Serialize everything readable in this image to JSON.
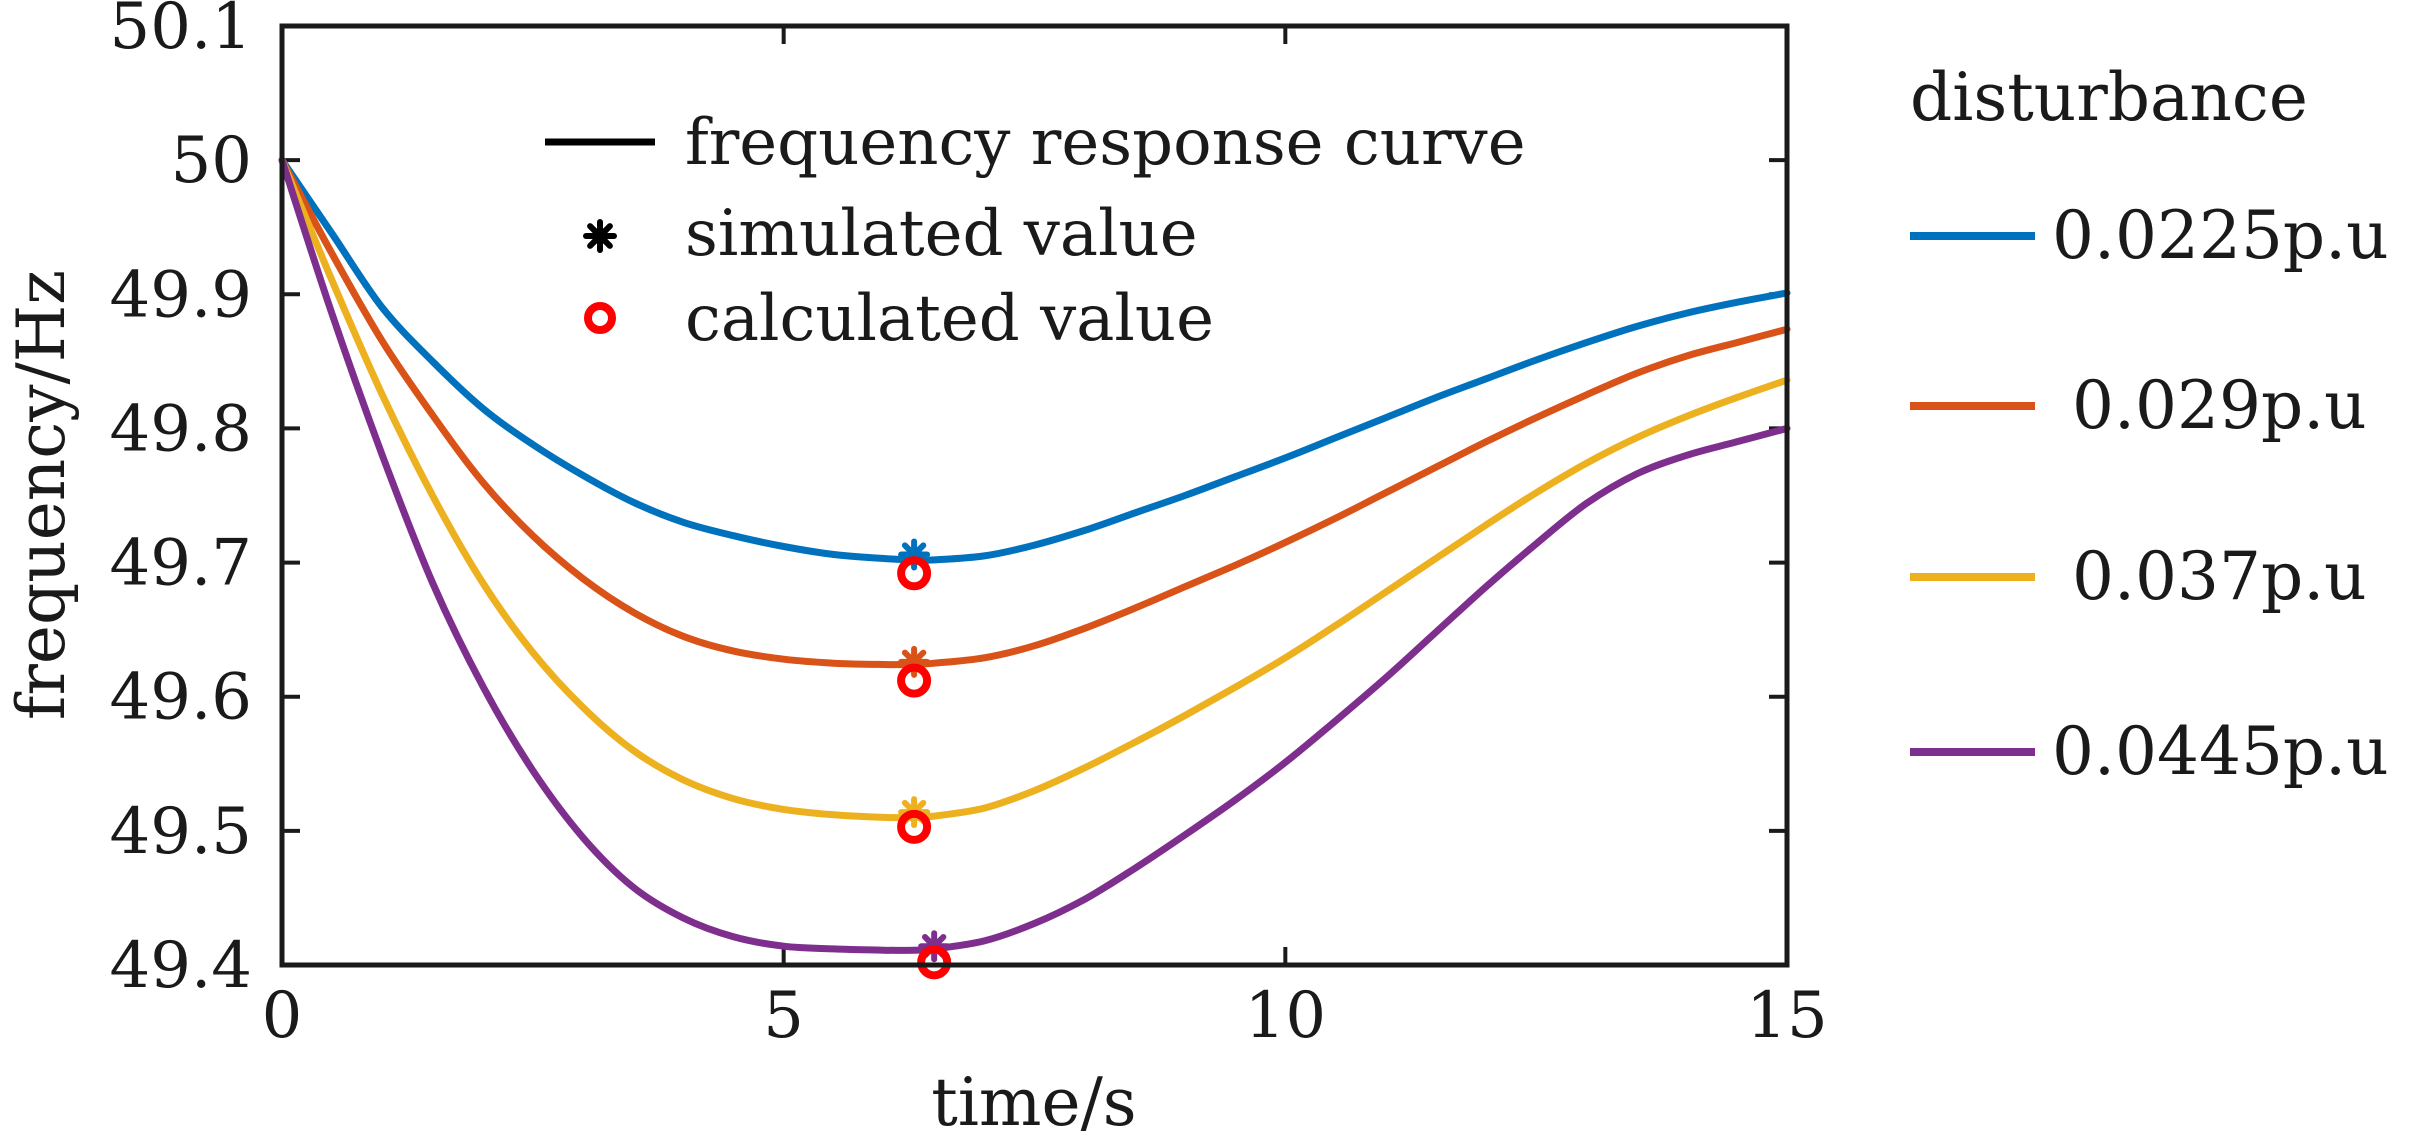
{
  "chart_data": {
    "type": "line",
    "xlabel": "time/s",
    "ylabel": "frequency/Hz",
    "xlim": [
      0,
      15
    ],
    "ylim": [
      49.4,
      50.1
    ],
    "xticks": [
      0,
      5,
      10,
      15
    ],
    "yticks": [
      49.4,
      49.5,
      49.6,
      49.7,
      49.8,
      49.9,
      50,
      50.1
    ],
    "xtick_labels": [
      "0",
      "5",
      "10",
      "15"
    ],
    "ytick_labels": [
      "49.4",
      "49.5",
      "49.6",
      "49.7",
      "49.8",
      "49.9",
      "50",
      "50.1"
    ],
    "grid": false,
    "inner_legend": {
      "placement": "top-center",
      "items": [
        {
          "label": "frequency response curve",
          "marker": "line",
          "color": "#000000"
        },
        {
          "label": "simulated value",
          "marker": "asterisk",
          "color": "#000000"
        },
        {
          "label": "calculated value",
          "marker": "circle",
          "color": "#ff0000"
        }
      ]
    },
    "side_legend": {
      "placement": "right",
      "title": "disturbance"
    },
    "series": [
      {
        "name": "0.0225p.u",
        "color": "#0072bd",
        "x": [
          0,
          0.5,
          1,
          1.5,
          2,
          2.5,
          3,
          3.5,
          4,
          4.5,
          5,
          5.5,
          6,
          6.3,
          6.5,
          7,
          7.5,
          8,
          8.5,
          9,
          9.5,
          10,
          10.5,
          11,
          11.5,
          12,
          12.5,
          13,
          13.5,
          14,
          14.5,
          15
        ],
        "y": [
          50.0,
          49.945,
          49.89,
          49.85,
          49.815,
          49.788,
          49.765,
          49.745,
          49.73,
          49.72,
          49.712,
          49.706,
          49.703,
          49.702,
          49.702,
          49.705,
          49.713,
          49.724,
          49.737,
          49.75,
          49.764,
          49.778,
          49.793,
          49.808,
          49.823,
          49.837,
          49.851,
          49.864,
          49.876,
          49.886,
          49.894,
          49.901
        ],
        "simulated": {
          "x": 6.3,
          "y": 49.706
        },
        "calculated": {
          "x": 6.3,
          "y": 49.692
        }
      },
      {
        "name": "0.029p.u",
        "color": "#d95319",
        "x": [
          0,
          0.5,
          1,
          1.5,
          2,
          2.5,
          3,
          3.5,
          4,
          4.5,
          5,
          5.5,
          6,
          6.3,
          6.5,
          7,
          7.5,
          8,
          8.5,
          9,
          9.5,
          10,
          10.5,
          11,
          11.5,
          12,
          12.5,
          13,
          13.5,
          14,
          14.5,
          15
        ],
        "y": [
          50.0,
          49.93,
          49.865,
          49.81,
          49.76,
          49.72,
          49.688,
          49.663,
          49.645,
          49.634,
          49.628,
          49.625,
          49.624,
          49.624,
          49.625,
          49.629,
          49.638,
          49.651,
          49.666,
          49.682,
          49.698,
          49.715,
          49.733,
          49.752,
          49.771,
          49.79,
          49.808,
          49.825,
          49.841,
          49.854,
          49.864,
          49.874
        ],
        "simulated": {
          "x": 6.3,
          "y": 49.626
        },
        "calculated": {
          "x": 6.3,
          "y": 49.612
        }
      },
      {
        "name": "0.037p.u",
        "color": "#edb120",
        "x": [
          0,
          0.5,
          1,
          1.5,
          2,
          2.5,
          3,
          3.5,
          4,
          4.5,
          5,
          5.5,
          6,
          6.3,
          6.5,
          7,
          7.5,
          8,
          8.5,
          9,
          9.5,
          10,
          10.5,
          11,
          11.5,
          12,
          12.5,
          13,
          13.5,
          14,
          14.5,
          15
        ],
        "y": [
          50.0,
          49.91,
          49.825,
          49.75,
          49.685,
          49.633,
          49.592,
          49.56,
          49.538,
          49.524,
          49.516,
          49.512,
          49.51,
          49.51,
          49.511,
          49.517,
          49.53,
          49.547,
          49.566,
          49.586,
          49.607,
          49.629,
          49.653,
          49.678,
          49.703,
          49.728,
          49.752,
          49.774,
          49.793,
          49.809,
          49.823,
          49.836
        ],
        "simulated": {
          "x": 6.3,
          "y": 49.514
        },
        "calculated": {
          "x": 6.3,
          "y": 49.503
        }
      },
      {
        "name": "0.0445p.u",
        "color": "#7e2f8e",
        "x": [
          0,
          0.5,
          1,
          1.5,
          2,
          2.5,
          3,
          3.5,
          4,
          4.5,
          5,
          5.5,
          6,
          6.3,
          6.5,
          7,
          7.5,
          8,
          8.5,
          9,
          9.5,
          10,
          10.5,
          11,
          11.5,
          12,
          12.5,
          13,
          13.5,
          14,
          14.5,
          15
        ],
        "y": [
          50.0,
          49.885,
          49.78,
          49.685,
          49.608,
          49.545,
          49.495,
          49.458,
          49.435,
          49.421,
          49.414,
          49.412,
          49.411,
          49.411,
          49.412,
          49.418,
          49.431,
          49.449,
          49.472,
          49.497,
          49.523,
          49.551,
          49.582,
          49.614,
          49.648,
          49.682,
          49.714,
          49.744,
          49.766,
          49.78,
          49.79,
          49.8
        ],
        "simulated": {
          "x": 6.5,
          "y": 49.414
        },
        "calculated": {
          "x": 6.5,
          "y": 49.402
        }
      }
    ]
  }
}
